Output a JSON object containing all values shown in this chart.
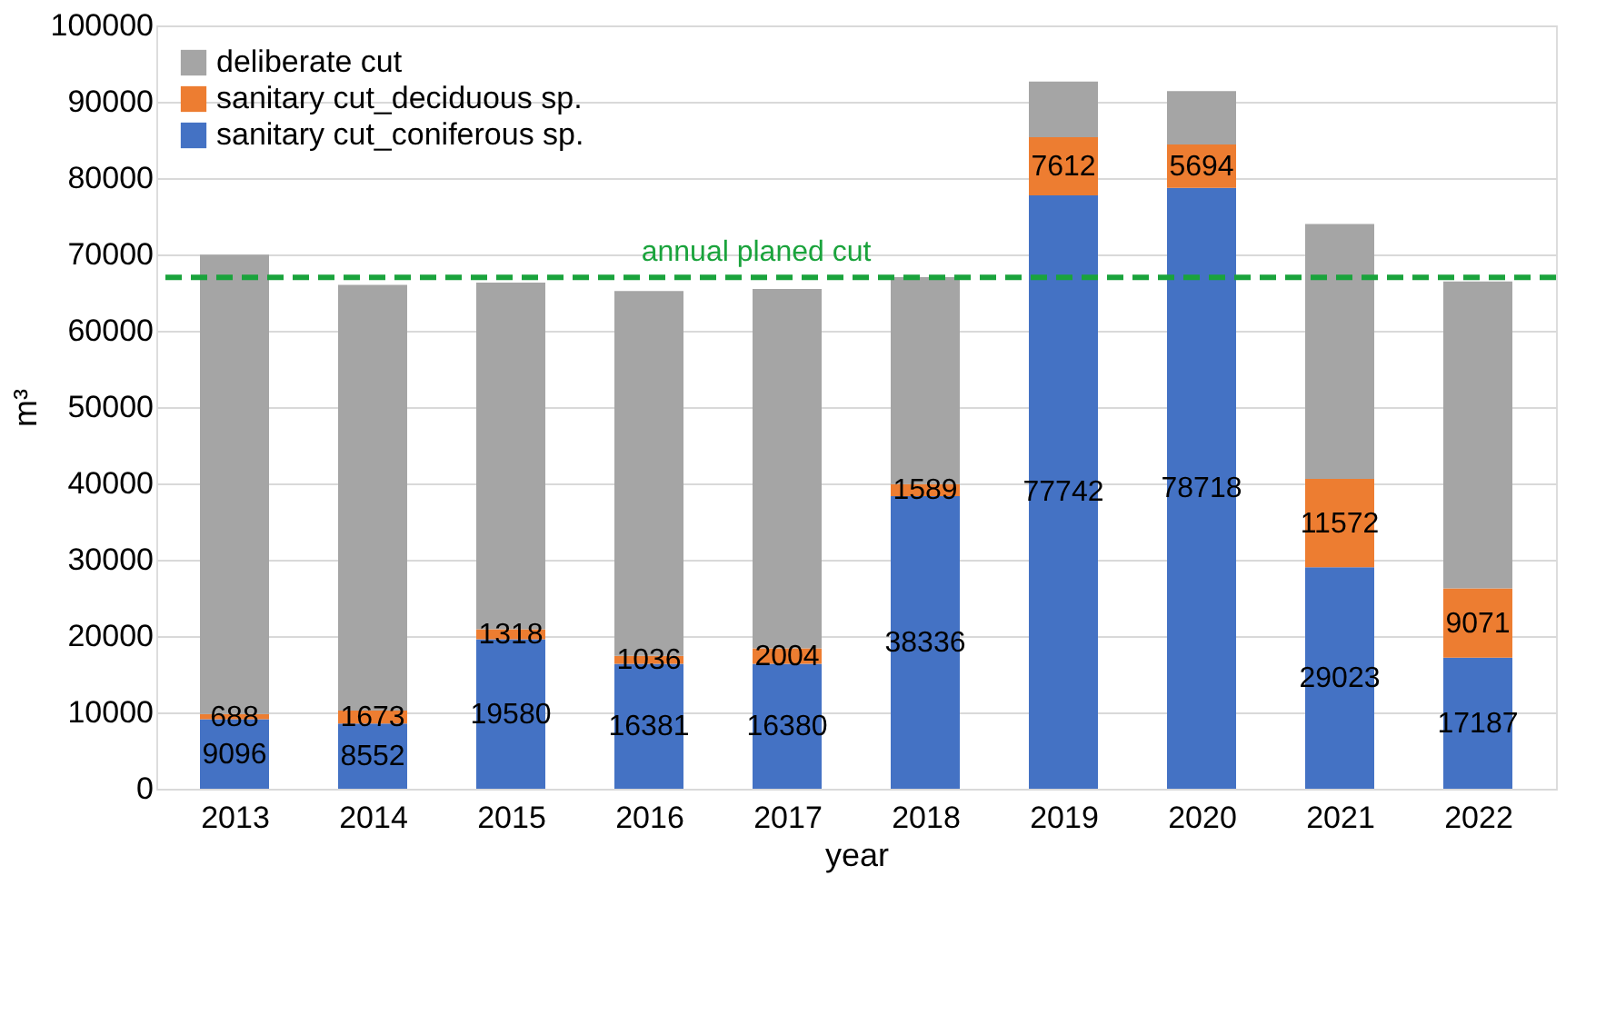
{
  "chart_data": {
    "type": "bar",
    "stacked": true,
    "xlabel": "year",
    "ylabel": "m³",
    "categories": [
      "2013",
      "2014",
      "2015",
      "2016",
      "2017",
      "2018",
      "2019",
      "2020",
      "2021",
      "2022"
    ],
    "series": [
      {
        "name": "sanitary cut_coniferous sp.",
        "color": "#4472c4",
        "values": [
          9096,
          8552,
          19580,
          16381,
          16380,
          38336,
          77742,
          78718,
          29023,
          17187
        ],
        "value_labels": [
          "9096",
          "8552",
          "19580",
          "16381",
          "16380",
          "38336",
          "77742",
          "78718",
          "29023",
          "17187"
        ]
      },
      {
        "name": "sanitary cut_deciduous sp.",
        "color": "#ed7d31",
        "values": [
          688,
          1673,
          1318,
          1036,
          2004,
          1589,
          7612,
          5694,
          11572,
          9071
        ],
        "value_labels": [
          "688",
          "1673",
          "1318",
          "1036",
          "2004",
          "1589",
          "7612",
          "5694",
          "11572",
          "9071"
        ]
      },
      {
        "name": "deliberate cut",
        "color": "#a5a5a5",
        "values": [
          60200,
          55800,
          45400,
          47800,
          47100,
          27100,
          7300,
          7000,
          33400,
          40200
        ]
      }
    ],
    "ylim": [
      0,
      100000
    ],
    "yticks": [
      0,
      10000,
      20000,
      30000,
      40000,
      50000,
      60000,
      70000,
      80000,
      90000,
      100000
    ],
    "grid": "y",
    "legend": "top left",
    "ref_lines": [
      {
        "axis": "y",
        "value": 67000,
        "label": "annual planed cut",
        "color": "#1aa33c",
        "line_style": "dashed"
      }
    ]
  }
}
